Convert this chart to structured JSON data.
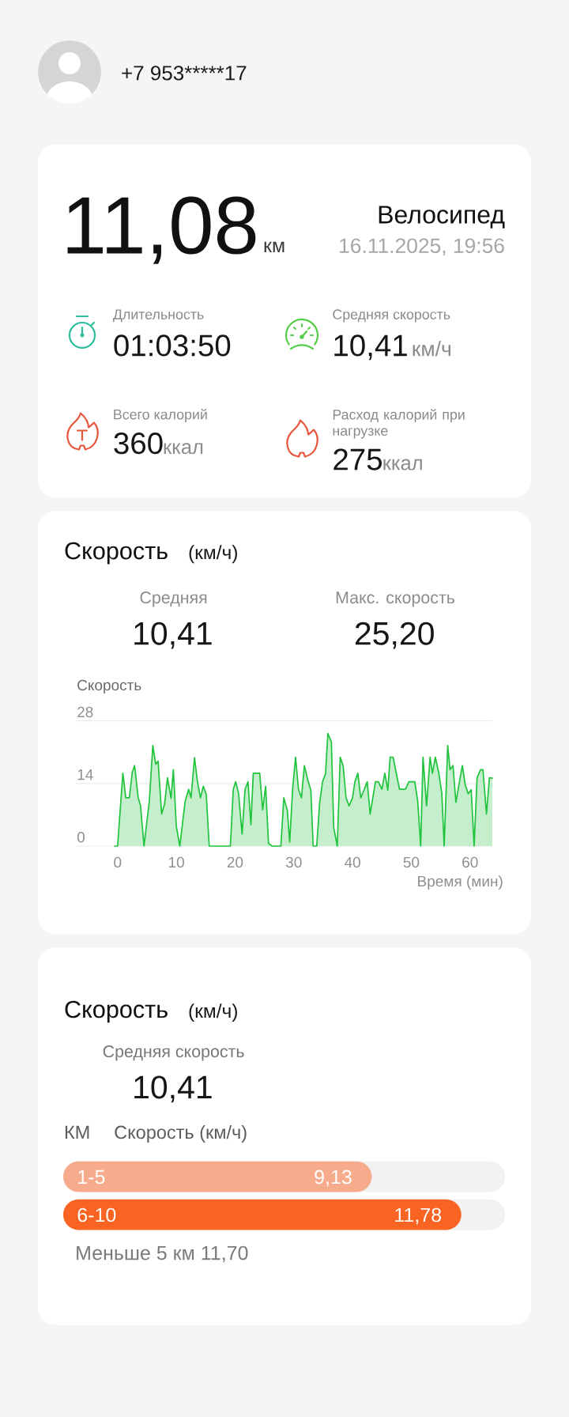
{
  "chart_data": [
    {
      "type": "other",
      "annotations": [
        "+7 953*****17",
        "11,08",
        "км",
        "Велосипед",
        "16.11.2025, 19:56",
        "Длительность",
        "01:03:50",
        "Средняя скорость",
        "10,41",
        "км/ч",
        "Всего калорий",
        "360",
        "ккал",
        "Расход калорий при нагрузке",
        "275",
        "ккал"
      ]
    },
    {
      "type": "area",
      "title": "Скорость",
      "subtitle": "(км/ч)",
      "annotations": [
        "Средняя",
        "10,41",
        "Макс. скорость",
        "25,20"
      ],
      "ylabel": "Скорость",
      "xlabel": "Время (мин)",
      "color": "#1fc33c",
      "grid": "y",
      "xlim": [
        -7.1,
        63.8
      ],
      "ylim": [
        0,
        28
      ],
      "xticks": [
        0,
        10,
        20,
        30,
        40,
        50,
        60
      ],
      "yticks": [
        0,
        14,
        28
      ],
      "x": [
        -0.5,
        0,
        0.9,
        1.4,
        2.0,
        2.5,
        2.9,
        3.5,
        3.9,
        4.5,
        5.4,
        6.0,
        6.5,
        6.9,
        7.5,
        8.0,
        8.5,
        9.1,
        9.5,
        10.0,
        10.6,
        11.5,
        12.1,
        12.5,
        13.1,
        13.6,
        14.1,
        14.6,
        15.1,
        15.6,
        19.2,
        19.7,
        20.1,
        20.6,
        21.2,
        21.7,
        22.2,
        22.7,
        23.1,
        24.2,
        24.7,
        25.2,
        25.7,
        26.3,
        27.8,
        28.3,
        28.9,
        29.3,
        29.8,
        30.3,
        30.8,
        31.3,
        31.8,
        32.4,
        32.9,
        33.3,
        33.9,
        34.4,
        34.9,
        35.4,
        35.8,
        36.4,
        36.8,
        37.4,
        37.9,
        38.4,
        38.9,
        39.4,
        40.0,
        40.4,
        40.9,
        41.4,
        42.0,
        42.5,
        43.0,
        43.9,
        44.4,
        45.0,
        45.5,
        46.0,
        46.4,
        46.9,
        48.0,
        49.0,
        49.6,
        50.6,
        51.1,
        51.6,
        52.0,
        52.6,
        53.2,
        53.6,
        54.1,
        54.7,
        55.2,
        55.6,
        56.2,
        56.6,
        57.1,
        57.6,
        58.2,
        58.7,
        59.2,
        59.7,
        60.2,
        60.7,
        61.2,
        61.8,
        62.2,
        62.8,
        63.3,
        63.8
      ],
      "values": [
        0,
        0,
        16.3,
        10.8,
        10.8,
        16.5,
        18.0,
        10.9,
        9.1,
        0,
        10.0,
        22.5,
        18.3,
        19.0,
        7.2,
        9.4,
        15.3,
        10.7,
        17.1,
        4.4,
        0,
        10.0,
        12.7,
        10.8,
        19.8,
        14.4,
        10.8,
        13.4,
        11.5,
        0,
        0,
        12.7,
        14.4,
        11.8,
        2.7,
        12.7,
        14.4,
        4.8,
        16.3,
        16.3,
        8.1,
        13.4,
        0.6,
        0,
        0,
        10.8,
        8.0,
        0.9,
        12.7,
        19.9,
        12.7,
        10.8,
        18.0,
        14.7,
        12.5,
        0,
        0,
        9.7,
        14.4,
        16.2,
        25.2,
        23.3,
        4.1,
        0,
        19.9,
        18.0,
        10.8,
        9.0,
        10.8,
        14.4,
        16.3,
        10.8,
        12.7,
        14.4,
        7.2,
        14.4,
        14.4,
        12.7,
        16.3,
        12.5,
        19.9,
        19.9,
        12.7,
        12.7,
        14.4,
        14.4,
        10.0,
        0,
        19.9,
        9.0,
        19.9,
        16.3,
        19.9,
        16.2,
        11.8,
        0,
        22.5,
        17.1,
        18.0,
        9.8,
        14.4,
        18.0,
        13.6,
        11.7,
        12.6,
        0,
        15.3,
        17.1,
        17.1,
        7.2,
        15.3,
        15.2
      ]
    },
    {
      "type": "bar",
      "orientation": "horizontal",
      "title": "Скорость",
      "subtitle": "(км/ч)",
      "annotations": [
        "Средняя скорость",
        "10,41",
        "Меньше 5 км 11,70"
      ],
      "ylabel": "КМ",
      "xlabel": "Скорость (км/ч)",
      "categories": [
        "1-5",
        "6-10",
        null
      ],
      "values": [
        9.13,
        11.78,
        null
      ],
      "colors": [
        "#f5ab8c",
        "#fa6423",
        null
      ],
      "value_labels": [
        "9,13",
        "11,78",
        null
      ]
    }
  ]
}
